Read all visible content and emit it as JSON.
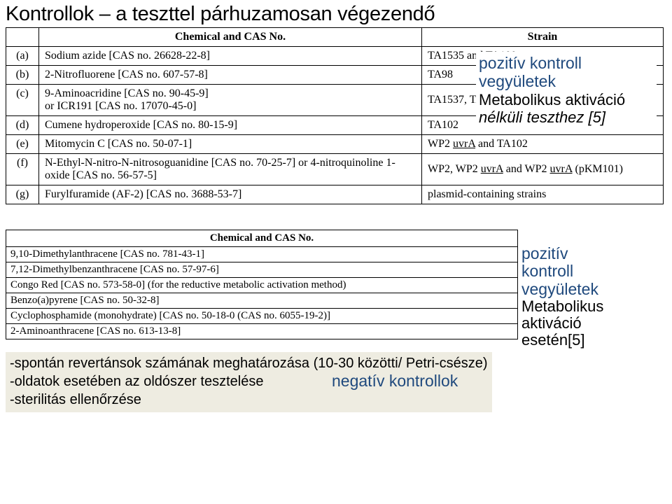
{
  "heading": "Kontrollok – a teszttel párhuzamosan végezendő",
  "callout1": {
    "l1a": "pozitív kontroll",
    "l1b": "vegyületek",
    "l2a": "Metabolikus aktiváció",
    "l2b_html": "<i>nélküli</i> teszthez [5]"
  },
  "callout2": {
    "l1a": "pozitív",
    "l1b": "kontroll",
    "l1c": "vegyületek",
    "l2a": "Metabolikus",
    "l2b": "aktiváció",
    "l2c": "esetén[5]"
  },
  "table1": {
    "header_chem": "Chemical and CAS No.",
    "header_strain": "Strain",
    "rows": [
      {
        "k": "(a)",
        "chem": "Sodium azide [CAS no. 26628-22-8]",
        "strain": "TA1535 and TA100"
      },
      {
        "k": "(b)",
        "chem": "2-Nitrofluorene [CAS no. 607-57-8]",
        "strain": "TA98"
      },
      {
        "k": "(c)",
        "chem": "9-Aminoacridine [CAS no. 90-45-9]<br>or ICR191 [CAS no. 17070-45-0]",
        "strain": "TA1537, TA97 and TA97a"
      },
      {
        "k": "(d)",
        "chem": "Cumene hydroperoxide [CAS no. 80-15-9]",
        "strain": "TA102"
      },
      {
        "k": "(e)",
        "chem": "Mitomycin C [CAS no. 50-07-1]",
        "strain": "WP2 <span class=\"u\">uvrA</span> and TA102"
      },
      {
        "k": "(f)",
        "chem": "N-Ethyl-N-nitro-N-nitrosoguanidine [CAS no. 70-25-7] or 4-nitroquinoline 1-oxide [CAS no. 56-57-5]",
        "strain": "WP2, WP2 <span class=\"u\">uvrA</span> and WP2 <span class=\"u\">uvrA</span> (pKM101)"
      },
      {
        "k": "(g)",
        "chem": "Furylfuramide (AF-2) [CAS no. 3688-53-7]",
        "strain": "plasmid-containing strains"
      }
    ]
  },
  "table2": {
    "header": "Chemical and CAS No.",
    "rows": [
      "9,10-Dimethylanthracene [CAS no. 781-43-1]",
      "7,12-Dimethylbenzanthracene [CAS no. 57-97-6]",
      "Congo Red [CAS no. 573-58-0] (for the reductive metabolic activation method)",
      "Benzo(a)pyrene [CAS no. 50-32-8]",
      "Cyclophosphamide (monohydrate) [CAS no. 50-18-0 (CAS no. 6055-19-2)]",
      "2-Aminoanthracene [CAS no. 613-13-8]"
    ]
  },
  "notes": {
    "a": "-spontán revertánsok számának meghatározása (10-30 közötti/ Petri-csésze)",
    "b": "-oldatok esetében az oldószer tesztelése",
    "c": "-sterilitás ellenőrzése",
    "neg": "negatív kontrollok"
  }
}
